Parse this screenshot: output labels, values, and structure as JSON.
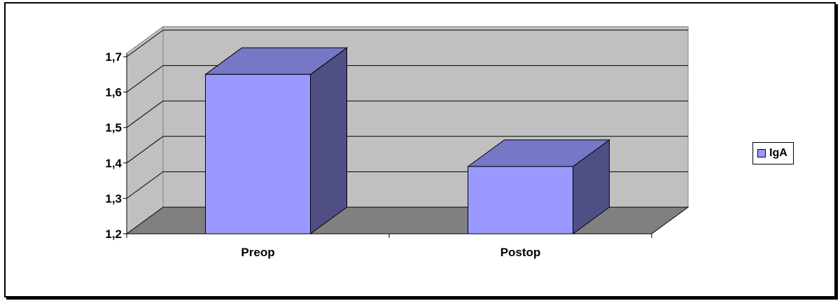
{
  "chart_data": {
    "type": "bar",
    "categories": [
      "Preop",
      "Postop"
    ],
    "series": [
      {
        "name": "IgA",
        "values": [
          1.65,
          1.39
        ]
      }
    ],
    "ylim": [
      1.2,
      1.7
    ],
    "yticks": [
      "1,2",
      "1,3",
      "1,4",
      "1,5",
      "1,6",
      "1,7"
    ],
    "grid": true,
    "legend_position": "right",
    "style": "3d-column",
    "colors": {
      "bar_front": "#9999ff",
      "bar_top": "#7777c8",
      "bar_side": "#4f4f86",
      "back_wall": "#c0c0c0",
      "side_wall": "#c0c0c0",
      "floor": "#808080"
    }
  }
}
